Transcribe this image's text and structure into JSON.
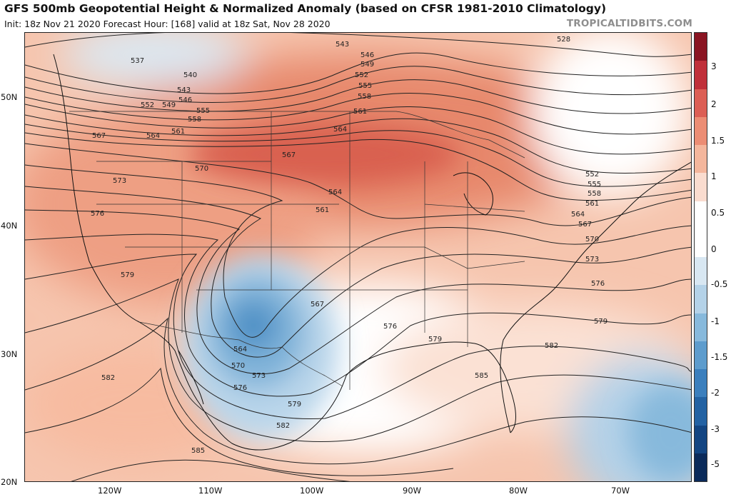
{
  "header": {
    "title": "GFS 500mb Geopotential Height & Normalized Anomaly (based on CFSR 1981-2010 Climatology)",
    "subtitle": "Init: 18z Nov 21 2020   Forecast Hour: [168]   valid at 18z Sat, Nov 28 2020",
    "site": "TROPICALTIDBITS.COM"
  },
  "axes": {
    "latitudes": [
      "50N",
      "40N",
      "30N",
      "20N"
    ],
    "longitudes": [
      "120W",
      "110W",
      "100W",
      "90W",
      "80W",
      "70W"
    ]
  },
  "colorbar": {
    "labels": [
      "3",
      "2",
      "1.5",
      "1",
      "0.5",
      "0",
      "-0.5",
      "-1",
      "-1.5",
      "-2",
      "-3",
      "-5"
    ],
    "colors": [
      "#8a1522",
      "#c0303a",
      "#dc5f55",
      "#ec8d74",
      "#f4b69c",
      "#fadccf",
      "#ffffff",
      "#ffffff",
      "#d8e7f2",
      "#b4d2e8",
      "#87b9dc",
      "#5d9ccd",
      "#3b7fbd",
      "#2362a3",
      "#134582",
      "#0b2a5a"
    ]
  },
  "contour_labels": [
    "528",
    "537",
    "540",
    "543",
    "546",
    "549",
    "552",
    "555",
    "558",
    "561",
    "564",
    "567",
    "570",
    "573",
    "576",
    "579",
    "582",
    "585"
  ],
  "map_data": {
    "field": "500mb geopotential height (dam) and normalized anomaly",
    "trough_center_height": "564",
    "anomaly_features": [
      {
        "name": "positive anomaly",
        "region": "northern plains / upper midwest",
        "value": 1.5
      },
      {
        "name": "negative anomaly",
        "region": "southwest / northern mexico",
        "value": -1.5
      },
      {
        "name": "negative anomaly",
        "region": "western atlantic",
        "value": -1
      }
    ]
  }
}
